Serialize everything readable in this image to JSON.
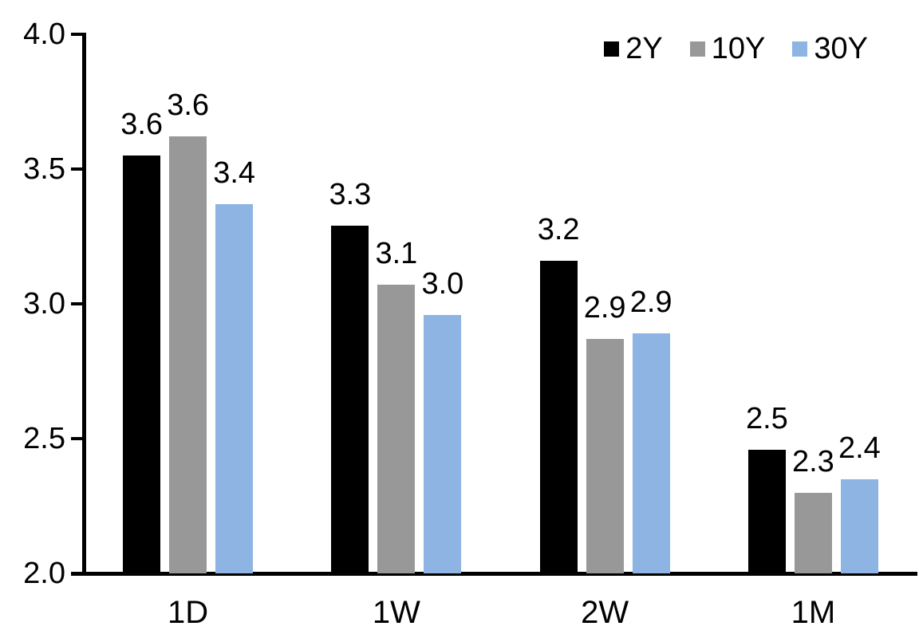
{
  "chart_data": {
    "type": "bar",
    "title": "",
    "categories": [
      "1D",
      "1W",
      "2W",
      "1M"
    ],
    "series": [
      {
        "name": "2Y",
        "color": "#000000",
        "values": [
          3.55,
          3.29,
          3.16,
          2.46
        ],
        "labels": [
          "3.6",
          "3.3",
          "3.2",
          "2.5"
        ]
      },
      {
        "name": "10Y",
        "color": "#989898",
        "values": [
          3.62,
          3.07,
          2.87,
          2.3
        ],
        "labels": [
          "3.6",
          "3.1",
          "2.9",
          "2.3"
        ]
      },
      {
        "name": "30Y",
        "color": "#8DB4E2",
        "values": [
          3.37,
          2.96,
          2.89,
          2.35
        ],
        "labels": [
          "3.4",
          "3.0",
          "2.9",
          "2.4"
        ]
      }
    ],
    "ylim": [
      2.0,
      4.0
    ],
    "y_ticks": [
      "4.0",
      "3.5",
      "3.0",
      "2.5",
      "2.0"
    ],
    "y_tick_values": [
      4.0,
      3.5,
      3.0,
      2.5,
      2.0
    ],
    "grid": false,
    "legend_position": "top-right",
    "axis_color": "#000000",
    "text_color": "#000000",
    "background": "#FFFFFF"
  }
}
